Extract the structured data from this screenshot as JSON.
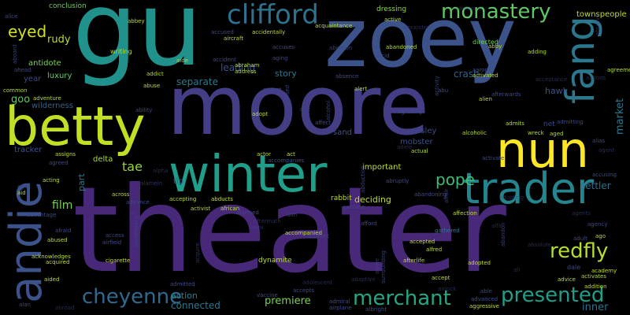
{
  "words": [
    {
      "text": "theater",
      "color": "#482878",
      "vertical": false
    },
    {
      "text": "moore",
      "color": "#433e85",
      "vertical": false
    },
    {
      "text": "gu",
      "color": "#21918c",
      "vertical": false
    },
    {
      "text": "zoey",
      "color": "#3b528b",
      "vertical": false
    },
    {
      "text": "betty",
      "color": "#c2df23",
      "vertical": false
    },
    {
      "text": "nun",
      "color": "#fde725",
      "vertical": false
    },
    {
      "text": "winter",
      "color": "#1f9e89",
      "vertical": false
    },
    {
      "text": "trader",
      "color": "#25858e",
      "vertical": false
    },
    {
      "text": "andie",
      "color": "#3b528b",
      "vertical": true
    },
    {
      "text": "fang",
      "color": "#2a788e",
      "vertical": true
    },
    {
      "text": "clifford",
      "color": "#2c728e",
      "vertical": false
    },
    {
      "text": "monastery",
      "color": "#5ec962",
      "vertical": false
    },
    {
      "text": "eyed",
      "color": "#d0e11c",
      "vertical": false
    },
    {
      "text": "redfly",
      "color": "#b5de2b",
      "vertical": false
    },
    {
      "text": "cheyenne",
      "color": "#30698e",
      "vertical": false
    },
    {
      "text": "merchant",
      "color": "#22a884",
      "vertical": false
    },
    {
      "text": "presented",
      "color": "#1f9e89",
      "vertical": false
    },
    {
      "text": "pope",
      "color": "#3dbc74",
      "vertical": false
    },
    {
      "text": "townspeople",
      "color": "#c2df23",
      "vertical": false
    },
    {
      "text": "rudy",
      "color": "#b8de29",
      "vertical": false
    },
    {
      "text": "tae",
      "color": "#90d743",
      "vertical": false
    },
    {
      "text": "film",
      "color": "#7ad151",
      "vertical": false
    },
    {
      "text": "goo",
      "color": "#5ec962",
      "vertical": false
    },
    {
      "text": "crash",
      "color": "#35608d",
      "vertical": false
    },
    {
      "text": "leading",
      "color": "#3b528b",
      "vertical": false
    },
    {
      "text": "story",
      "color": "#2a788e",
      "vertical": false
    },
    {
      "text": "separate",
      "color": "#2a788e",
      "vertical": false
    },
    {
      "text": "premiere",
      "color": "#7ad151",
      "vertical": false
    },
    {
      "text": "connected",
      "color": "#2a788e",
      "vertical": false
    },
    {
      "text": "action",
      "color": "#26828e",
      "vertical": false
    },
    {
      "text": "inner",
      "color": "#2c728e",
      "vertical": false
    },
    {
      "text": "market",
      "color": "#2a788e",
      "vertical": true
    },
    {
      "text": "dynamite",
      "color": "#bddf26",
      "vertical": false
    },
    {
      "text": "deciding",
      "color": "#c2df23",
      "vertical": false
    },
    {
      "text": "rabbit",
      "color": "#c2df23",
      "vertical": false
    },
    {
      "text": "mobster",
      "color": "#3b528b",
      "vertical": false
    },
    {
      "text": "important",
      "color": "#c2df23",
      "vertical": false
    },
    {
      "text": "delta",
      "color": "#a8db34",
      "vertical": false
    },
    {
      "text": "part",
      "color": "#2a788e",
      "vertical": true
    },
    {
      "text": "tip",
      "color": "#3b528b",
      "vertical": false
    },
    {
      "text": "wesley",
      "color": "#3e4989",
      "vertical": false
    },
    {
      "text": "hawk",
      "color": "#3b528b",
      "vertical": false
    },
    {
      "text": "net",
      "color": "#3e4989",
      "vertical": false
    },
    {
      "text": "sand",
      "color": "#3b528b",
      "vertical": false
    },
    {
      "text": "settler",
      "color": "#2c728e",
      "vertical": false
    },
    {
      "text": "tracker",
      "color": "#3b528b",
      "vertical": false
    },
    {
      "text": "wilderness",
      "color": "#33638d",
      "vertical": false
    },
    {
      "text": "antidote",
      "color": "#7ad151",
      "vertical": false
    },
    {
      "text": "luxury",
      "color": "#5ec962",
      "vertical": false
    },
    {
      "text": "year",
      "color": "#3e4989",
      "vertical": false
    },
    {
      "text": "writing",
      "color": "#b5de2b",
      "vertical": false
    },
    {
      "text": "conclusion",
      "color": "#6ece58",
      "vertical": false
    },
    {
      "text": "dressing",
      "color": "#8fd744",
      "vertical": false
    },
    {
      "text": "directed",
      "color": "#6ece58",
      "vertical": false
    },
    {
      "text": "abbey",
      "color": "#bddf26",
      "vertical": false
    },
    {
      "text": "adopt",
      "color": "#b5de2b",
      "vertical": false
    },
    {
      "text": "actor",
      "color": "#b8de29",
      "vertical": false
    },
    {
      "text": "act",
      "color": "#cde11d",
      "vertical": false
    },
    {
      "text": "accompanies",
      "color": "#3b528b",
      "vertical": false
    },
    {
      "text": "accepting",
      "color": "#b5de2b",
      "vertical": false
    },
    {
      "text": "abducts",
      "color": "#cde11d",
      "vertical": false
    },
    {
      "text": "activist",
      "color": "#b5de2b",
      "vertical": false
    },
    {
      "text": "african",
      "color": "#b5de2b",
      "vertical": false
    },
    {
      "text": "accompanied",
      "color": "#b5de2b",
      "vertical": false
    },
    {
      "text": "accepted",
      "color": "#c2df23",
      "vertical": false
    },
    {
      "text": "alfred",
      "color": "#c2df23",
      "vertical": false
    },
    {
      "text": "afterlife",
      "color": "#c2df23",
      "vertical": false
    },
    {
      "text": "accept",
      "color": "#c2df23",
      "vertical": false
    },
    {
      "text": "adopted",
      "color": "#c2df23",
      "vertical": false
    },
    {
      "text": "advanced",
      "color": "#3b528b",
      "vertical": false
    },
    {
      "text": "aggressive",
      "color": "#bddf26",
      "vertical": false
    },
    {
      "text": "dale",
      "color": "#3e4989",
      "vertical": false
    },
    {
      "text": "academy",
      "color": "#c2df23",
      "vertical": false
    },
    {
      "text": "activates",
      "color": "#b5de2b",
      "vertical": false
    },
    {
      "text": "advice",
      "color": "#b5de2b",
      "vertical": false
    },
    {
      "text": "addition",
      "color": "#c2df23",
      "vertical": false
    },
    {
      "text": "account",
      "color": "#3e4989",
      "vertical": false
    },
    {
      "text": "airplane",
      "color": "#3e4989",
      "vertical": false
    },
    {
      "text": "albright",
      "color": "#3e4989",
      "vertical": false
    },
    {
      "text": "admiral",
      "color": "#3e4989",
      "vertical": false
    },
    {
      "text": "accepts",
      "color": "#3e4989",
      "vertical": false
    },
    {
      "text": "vaccine",
      "color": "#3e4989",
      "vertical": false
    },
    {
      "text": "cigarette",
      "color": "#c2df23",
      "vertical": false
    },
    {
      "text": "acquired",
      "color": "#c2df23",
      "vertical": false
    },
    {
      "text": "acknowledges",
      "color": "#b5de2b",
      "vertical": false
    },
    {
      "text": "aided",
      "color": "#b5de2b",
      "vertical": false
    },
    {
      "text": "abused",
      "color": "#b5de2b",
      "vertical": false
    },
    {
      "text": "advantage",
      "color": "#3e4989",
      "vertical": false
    },
    {
      "text": "assigns",
      "color": "#bddf26",
      "vertical": false
    },
    {
      "text": "agreed",
      "color": "#3e4989",
      "vertical": false
    },
    {
      "text": "acting",
      "color": "#b5de2b",
      "vertical": false
    },
    {
      "text": "affection",
      "color": "#c2df23",
      "vertical": false
    },
    {
      "text": "gathered",
      "color": "#2a788e",
      "vertical": false
    },
    {
      "text": "abandoning",
      "color": "#3e4989",
      "vertical": false
    },
    {
      "text": "cocaine",
      "color": "#3e4989",
      "vertical": false
    },
    {
      "text": "alarmed",
      "color": "#3e4989",
      "vertical": false
    },
    {
      "text": "aim",
      "color": "#3e4989",
      "vertical": false
    },
    {
      "text": "afford",
      "color": "#3e4989",
      "vertical": false
    },
    {
      "text": "abruptly",
      "color": "#3e4989",
      "vertical": false
    },
    {
      "text": "actual",
      "color": "#b5de2b",
      "vertical": false
    },
    {
      "text": "activate",
      "color": "#3e4989",
      "vertical": false
    },
    {
      "text": "accusing",
      "color": "#3e4989",
      "vertical": false
    },
    {
      "text": "alias",
      "color": "#3e4989",
      "vertical": false
    },
    {
      "text": "alcoholic",
      "color": "#b5de2b",
      "vertical": false
    },
    {
      "text": "wreck",
      "color": "#b5de2b",
      "vertical": false
    },
    {
      "text": "aged",
      "color": "#b5de2b",
      "vertical": false
    },
    {
      "text": "admits",
      "color": "#b5de2b",
      "vertical": false
    },
    {
      "text": "affect",
      "color": "#3e4989",
      "vertical": false
    },
    {
      "text": "agreeing",
      "color": "#3e4989",
      "vertical": false
    },
    {
      "text": "abu",
      "color": "#3e4989",
      "vertical": false
    },
    {
      "text": "alert",
      "color": "#b5de2b",
      "vertical": false
    },
    {
      "text": "absence",
      "color": "#3e4989",
      "vertical": false
    },
    {
      "text": "airport",
      "color": "#3e4989",
      "vertical": false
    },
    {
      "text": "address",
      "color": "#b5de2b",
      "vertical": false
    },
    {
      "text": "abraham",
      "color": "#b5de2b",
      "vertical": false
    },
    {
      "text": "accident",
      "color": "#3e4989",
      "vertical": false
    },
    {
      "text": "aging",
      "color": "#3e4989",
      "vertical": false
    },
    {
      "text": "accuses",
      "color": "#3e4989",
      "vertical": false
    },
    {
      "text": "addict",
      "color": "#b5de2b",
      "vertical": false
    },
    {
      "text": "abuse",
      "color": "#b5de2b",
      "vertical": false
    },
    {
      "text": "aircraft",
      "color": "#b5de2b",
      "vertical": false
    },
    {
      "text": "accidentally",
      "color": "#b5de2b",
      "vertical": false
    },
    {
      "text": "acquaintance",
      "color": "#b5de2b",
      "vertical": false
    },
    {
      "text": "aide",
      "color": "#b5de2b",
      "vertical": false
    },
    {
      "text": "accused",
      "color": "#3e4989",
      "vertical": false
    },
    {
      "text": "ahead",
      "color": "#3e4989",
      "vertical": false
    },
    {
      "text": "common",
      "color": "#b5de2b",
      "vertical": false
    },
    {
      "text": "adventure",
      "color": "#b5de2b",
      "vertical": false
    },
    {
      "text": "active",
      "color": "#b5de2b",
      "vertical": false
    },
    {
      "text": "abandoned",
      "color": "#b5de2b",
      "vertical": false
    },
    {
      "text": "acid",
      "color": "#3e4989",
      "vertical": false
    },
    {
      "text": "aaron",
      "color": "#3e4989",
      "vertical": false
    },
    {
      "text": "activated",
      "color": "#b5de2b",
      "vertical": false
    },
    {
      "text": "adding",
      "color": "#b5de2b",
      "vertical": false
    },
    {
      "text": "abby",
      "color": "#b5de2b",
      "vertical": false
    },
    {
      "text": "agreement",
      "color": "#b5de2b",
      "vertical": false
    },
    {
      "text": "alien",
      "color": "#b5de2b",
      "vertical": false
    },
    {
      "text": "afterwards",
      "color": "#3e4989",
      "vertical": false
    },
    {
      "text": "admitting",
      "color": "#3e4989",
      "vertical": false
    },
    {
      "text": "ability",
      "color": "#3e4989",
      "vertical": false
    },
    {
      "text": "advance",
      "color": "#3e4989",
      "vertical": false
    },
    {
      "text": "across",
      "color": "#b5de2b",
      "vertical": false
    },
    {
      "text": "ago",
      "color": "#b5de2b",
      "vertical": false
    },
    {
      "text": "agency",
      "color": "#3e4989",
      "vertical": false
    },
    {
      "text": "adult",
      "color": "#3e4989",
      "vertical": false
    },
    {
      "text": "access",
      "color": "#3e4989",
      "vertical": false
    },
    {
      "text": "airfield",
      "color": "#3e4989",
      "vertical": false
    },
    {
      "text": "afraid",
      "color": "#3e4989",
      "vertical": false
    },
    {
      "text": "admitted",
      "color": "#3e4989",
      "vertical": false
    },
    {
      "text": "alan",
      "color": "#3e4989",
      "vertical": false
    },
    {
      "text": "able",
      "color": "#3e4989",
      "vertical": false
    },
    {
      "text": "age",
      "color": "#3e4989",
      "vertical": false
    },
    {
      "text": "aid",
      "color": "#b5de2b",
      "vertical": false
    },
    {
      "text": "alice",
      "color": "#3e4989",
      "vertical": false
    },
    {
      "text": "abortion",
      "color": "#3e4989",
      "vertical": false
    },
    {
      "text": "aboard",
      "color": "#3e4989",
      "vertical": true
    },
    {
      "text": "advised",
      "color": "#3e4989",
      "vertical": true
    },
    {
      "text": "abandon",
      "color": "#3e4989",
      "vertical": true
    },
    {
      "text": "accompany",
      "color": "#3e4989",
      "vertical": true
    },
    {
      "text": "surrounding",
      "color": "#3e4989",
      "vertical": true
    },
    {
      "text": "activity",
      "color": "#3e4989",
      "vertical": true
    },
    {
      "text": "alcohol",
      "color": "#3e4989",
      "vertical": true
    },
    {
      "text": "abduction",
      "color": "#3e4989",
      "vertical": true
    },
    {
      "text": "affair",
      "color": "#3e4989",
      "vertical": true
    },
    {
      "text": "abusive",
      "color": "#3e4989",
      "vertical": true
    },
    {
      "text": "alamein",
      "color": "#3e4989",
      "vertical": false
    },
    {
      "text": "agree",
      "color": "#3e4989",
      "vertical": true
    },
    {
      "text": "acquire",
      "color": "#3e4989",
      "vertical": true
    },
    {
      "text": "creek",
      "color": "#3e4989",
      "vertical": false
    },
    {
      "text": "aftermath",
      "color": "#3e4989",
      "vertical": false
    },
    {
      "text": "abroad",
      "color": "#3e4989",
      "vertical": false
    },
    {
      "text": "alexander",
      "color": "#3e4989",
      "vertical": false
    },
    {
      "text": "additional",
      "color": "#3e4989",
      "vertical": false
    },
    {
      "text": "adaptive",
      "color": "#3e4989",
      "vertical": false
    },
    {
      "text": "alec",
      "color": "#3e4989",
      "vertical": false
    },
    {
      "text": "absolute",
      "color": "#3e4989",
      "vertical": false
    },
    {
      "text": "agent",
      "color": "#3e4989",
      "vertical": false
    },
    {
      "text": "alfa",
      "color": "#3e4989",
      "vertical": false
    },
    {
      "text": "all",
      "color": "#3e4989",
      "vertical": false
    },
    {
      "text": "acceptance",
      "color": "#3e4989",
      "vertical": false
    },
    {
      "text": "actions",
      "color": "#3e4989",
      "vertical": false
    },
    {
      "text": "adopting",
      "color": "#3e4989",
      "vertical": false
    },
    {
      "text": "adele",
      "color": "#3e4989",
      "vertical": false
    },
    {
      "text": "airlock",
      "color": "#3e4989",
      "vertical": false
    },
    {
      "text": "adolescent",
      "color": "#3e4989",
      "vertical": false
    },
    {
      "text": "ah",
      "color": "#3e4989",
      "vertical": false
    },
    {
      "text": "alpha",
      "color": "#3e4989",
      "vertical": false
    },
    {
      "text": "agents",
      "color": "#3e4989",
      "vertical": false
    }
  ]
}
